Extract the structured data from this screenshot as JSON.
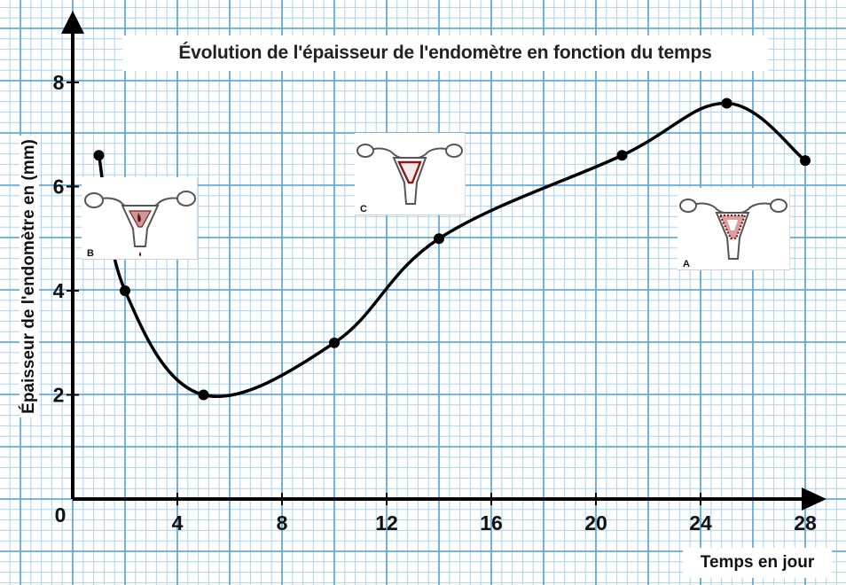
{
  "chart_data": {
    "type": "line",
    "title": "Évolution de l'épaisseur de l'endomètre en fonction du temps",
    "xlabel": "Temps en jour",
    "ylabel": "Épaisseur de l'endomètre en (mm)",
    "xlim": [
      0,
      28
    ],
    "ylim": [
      0,
      8
    ],
    "origin_label": "0",
    "x_ticks": [
      4,
      8,
      12,
      16,
      20,
      24,
      28
    ],
    "y_ticks": [
      2,
      4,
      6,
      8
    ],
    "grid": true,
    "series": [
      {
        "x": [
          1,
          2,
          5,
          10,
          14,
          21,
          25,
          28
        ],
        "y": [
          6.6,
          4.0,
          2.0,
          3.0,
          5.0,
          6.6,
          7.6,
          6.5
        ]
      }
    ],
    "annotations": [
      "B",
      "C",
      "A"
    ]
  },
  "colors": {
    "grid_major": "#62a9dd",
    "grid_minor": "#a9d3f1",
    "axis": "#000000",
    "curve": "#000000",
    "uterus_outline": "#555555",
    "endometrium": "#8a1a1a"
  }
}
